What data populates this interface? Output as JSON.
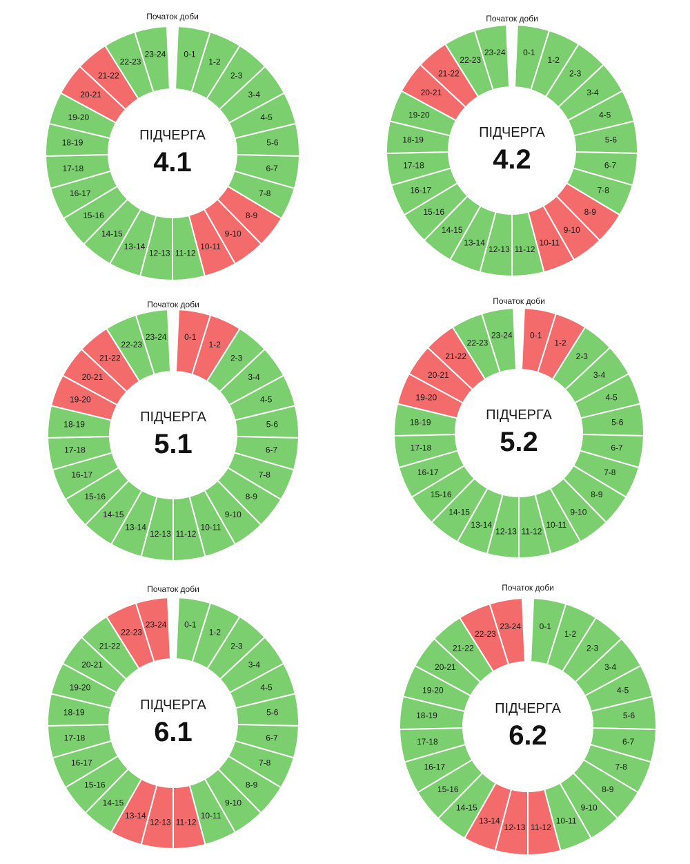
{
  "start_label": "Початок доби",
  "queue_word": "ПІДЧЕРГА",
  "colors": {
    "on": "#7ccf6e",
    "off": "#f46b6b",
    "gap": "#ffffff"
  },
  "hour_labels": [
    "0-1",
    "1-2",
    "2-3",
    "3-4",
    "4-5",
    "5-6",
    "6-7",
    "7-8",
    "8-9",
    "9-10",
    "10-11",
    "11-12",
    "12-13",
    "13-14",
    "14-15",
    "15-16",
    "16-17",
    "17-18",
    "18-19",
    "19-20",
    "20-21",
    "21-22",
    "22-23",
    "23-24"
  ],
  "charts": [
    {
      "id": "4.1",
      "label": "4.1",
      "off_hours": [
        8,
        9,
        10,
        20,
        21
      ]
    },
    {
      "id": "4.2",
      "label": "4.2",
      "off_hours": [
        8,
        9,
        10,
        20,
        21
      ]
    },
    {
      "id": "5.1",
      "label": "5.1",
      "off_hours": [
        0,
        1,
        19,
        20,
        21
      ]
    },
    {
      "id": "5.2",
      "label": "5.2",
      "off_hours": [
        0,
        1,
        19,
        20,
        21
      ]
    },
    {
      "id": "6.1",
      "label": "6.1",
      "off_hours": [
        11,
        12,
        13,
        22,
        23
      ]
    },
    {
      "id": "6.2",
      "label": "6.2",
      "off_hours": [
        11,
        12,
        13,
        22,
        23
      ]
    }
  ]
}
